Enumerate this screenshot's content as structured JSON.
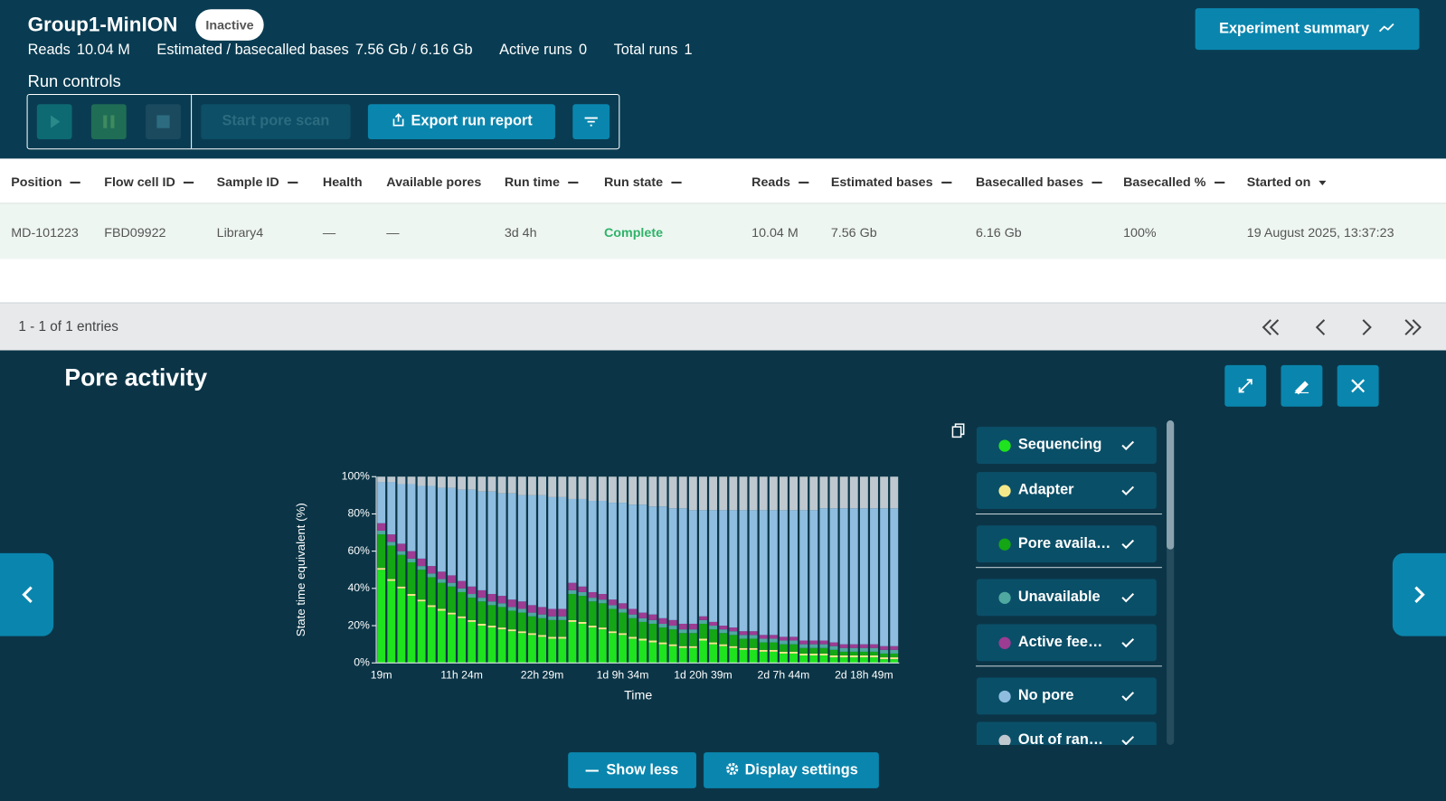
{
  "header": {
    "title": "Group1-MinION",
    "status": "Inactive",
    "stats": [
      {
        "label": "Reads",
        "value": "10.04 M"
      },
      {
        "label": "Estimated / basecalled bases",
        "value": "7.56 Gb / 6.16 Gb"
      },
      {
        "label": "Active runs",
        "value": "0"
      },
      {
        "label": "Total runs",
        "value": "1"
      }
    ],
    "summary_button": "Experiment summary"
  },
  "run_controls": {
    "title": "Run controls",
    "pore_scan": "Start pore scan",
    "export": "Export run report"
  },
  "table": {
    "columns": [
      "Position",
      "Flow cell ID",
      "Sample ID",
      "Health",
      "Available pores",
      "Run time",
      "Run state",
      "Reads",
      "Estimated bases",
      "Basecalled bases",
      "Basecalled %",
      "Started on"
    ],
    "rows": [
      [
        "MD-101223",
        "FBD09922",
        "Library4",
        "—",
        "—",
        "3d 4h",
        "Complete",
        "10.04 M",
        "7.56 Gb",
        "6.16 Gb",
        "100%",
        "19 August 2025, 13:37:23"
      ]
    ]
  },
  "pagination": "1 - 1 of 1 entries",
  "panel": {
    "title": "Pore activity",
    "show_less": "Show less",
    "display_settings": "Display settings"
  },
  "chart_data": {
    "type": "stacked_bar",
    "xlabel": "Time",
    "ylabel": "State time equivalent (%)",
    "categories": [
      "19m",
      null,
      null,
      null,
      null,
      null,
      null,
      null,
      "11h 24m",
      null,
      null,
      null,
      null,
      null,
      null,
      null,
      "22h 29m",
      null,
      null,
      null,
      null,
      null,
      null,
      null,
      "1d 9h 34m",
      null,
      null,
      null,
      null,
      null,
      null,
      null,
      "1d 20h 39m",
      null,
      null,
      null,
      null,
      null,
      null,
      null,
      "2d 7h 44m",
      null,
      null,
      null,
      null,
      null,
      null,
      null,
      "2d 18h 49m",
      null,
      null,
      null
    ],
    "ylim": [
      0,
      100
    ],
    "yticks": [
      {
        "value": 0,
        "label": "0%"
      },
      {
        "value": 20,
        "label": "20%"
      },
      {
        "value": 40,
        "label": "40%"
      },
      {
        "value": 60,
        "label": "60%"
      },
      {
        "value": 80,
        "label": "80%"
      },
      {
        "value": 100,
        "label": "100%"
      }
    ],
    "series": [
      {
        "name": "Sequencing",
        "color": "#1ee31e",
        "values": [
          50,
          44,
          40,
          36,
          33,
          30,
          28,
          26,
          24,
          22,
          20,
          19,
          18,
          17,
          16,
          15,
          14,
          13,
          13,
          22,
          21,
          19,
          18,
          16,
          15,
          13,
          12,
          11,
          10,
          9,
          8,
          8,
          12,
          10,
          9,
          8,
          7,
          7,
          6,
          6,
          5,
          5,
          4,
          4,
          4,
          3,
          3,
          3,
          3,
          3,
          2,
          2
        ]
      },
      {
        "name": "Adapter",
        "color": "#f4e98a",
        "values": [
          1,
          1,
          1,
          1,
          1,
          1,
          1,
          1,
          1,
          1,
          1,
          1,
          1,
          1,
          1,
          1,
          1,
          1,
          1,
          1,
          1,
          1,
          1,
          1,
          1,
          1,
          1,
          1,
          1,
          1,
          1,
          1,
          1,
          1,
          1,
          1,
          1,
          1,
          1,
          1,
          1,
          1,
          1,
          1,
          1,
          1,
          1,
          1,
          1,
          1,
          1,
          1
        ]
      },
      {
        "name": "Pore availa…",
        "color": "#14a614",
        "values": [
          18,
          18,
          17,
          17,
          16,
          15,
          14,
          14,
          13,
          12,
          12,
          11,
          11,
          10,
          10,
          9,
          9,
          9,
          9,
          14,
          14,
          13,
          13,
          12,
          11,
          10,
          9,
          9,
          8,
          8,
          7,
          7,
          8,
          7,
          6,
          6,
          5,
          5,
          4,
          4,
          4,
          4,
          3,
          3,
          3,
          3,
          2,
          2,
          2,
          2,
          2,
          2
        ]
      },
      {
        "name": "Unavailable",
        "color": "#4fa9a0",
        "values": [
          2,
          2,
          2,
          2,
          2,
          2,
          2,
          2,
          2,
          2,
          2,
          2,
          2,
          2,
          2,
          2,
          2,
          2,
          2,
          2,
          2,
          2,
          2,
          2,
          2,
          2,
          2,
          2,
          2,
          2,
          2,
          2,
          2,
          2,
          2,
          2,
          2,
          2,
          2,
          2,
          2,
          2,
          2,
          2,
          2,
          2,
          2,
          2,
          2,
          2,
          2,
          2
        ]
      },
      {
        "name": "Active fee…",
        "color": "#9c3c93",
        "values": [
          4,
          4,
          4,
          4,
          4,
          4,
          4,
          4,
          4,
          4,
          4,
          4,
          4,
          4,
          4,
          4,
          4,
          4,
          4,
          4,
          3,
          3,
          3,
          3,
          3,
          3,
          3,
          3,
          3,
          3,
          3,
          3,
          2,
          2,
          2,
          2,
          2,
          2,
          2,
          2,
          2,
          2,
          2,
          2,
          2,
          2,
          2,
          2,
          2,
          2,
          2,
          2
        ]
      },
      {
        "name": "No pore",
        "color": "#8ebde0",
        "values": [
          22,
          28,
          32,
          36,
          39,
          43,
          45,
          47,
          49,
          52,
          53,
          55,
          55,
          57,
          57,
          59,
          60,
          60,
          60,
          45,
          47,
          49,
          50,
          52,
          54,
          56,
          58,
          58,
          60,
          60,
          62,
          61,
          57,
          60,
          62,
          63,
          65,
          65,
          67,
          67,
          68,
          68,
          70,
          70,
          71,
          72,
          73,
          73,
          73,
          73,
          74,
          74
        ]
      },
      {
        "name": "Out of ran…",
        "color": "#bfc8cf",
        "values": [
          3,
          3,
          4,
          4,
          5,
          5,
          6,
          6,
          7,
          7,
          8,
          8,
          9,
          9,
          10,
          10,
          10,
          11,
          11,
          12,
          12,
          13,
          13,
          14,
          14,
          15,
          15,
          16,
          16,
          17,
          17,
          18,
          18,
          18,
          18,
          18,
          18,
          18,
          18,
          18,
          18,
          18,
          18,
          18,
          17,
          17,
          17,
          17,
          17,
          17,
          17,
          17
        ]
      }
    ]
  }
}
